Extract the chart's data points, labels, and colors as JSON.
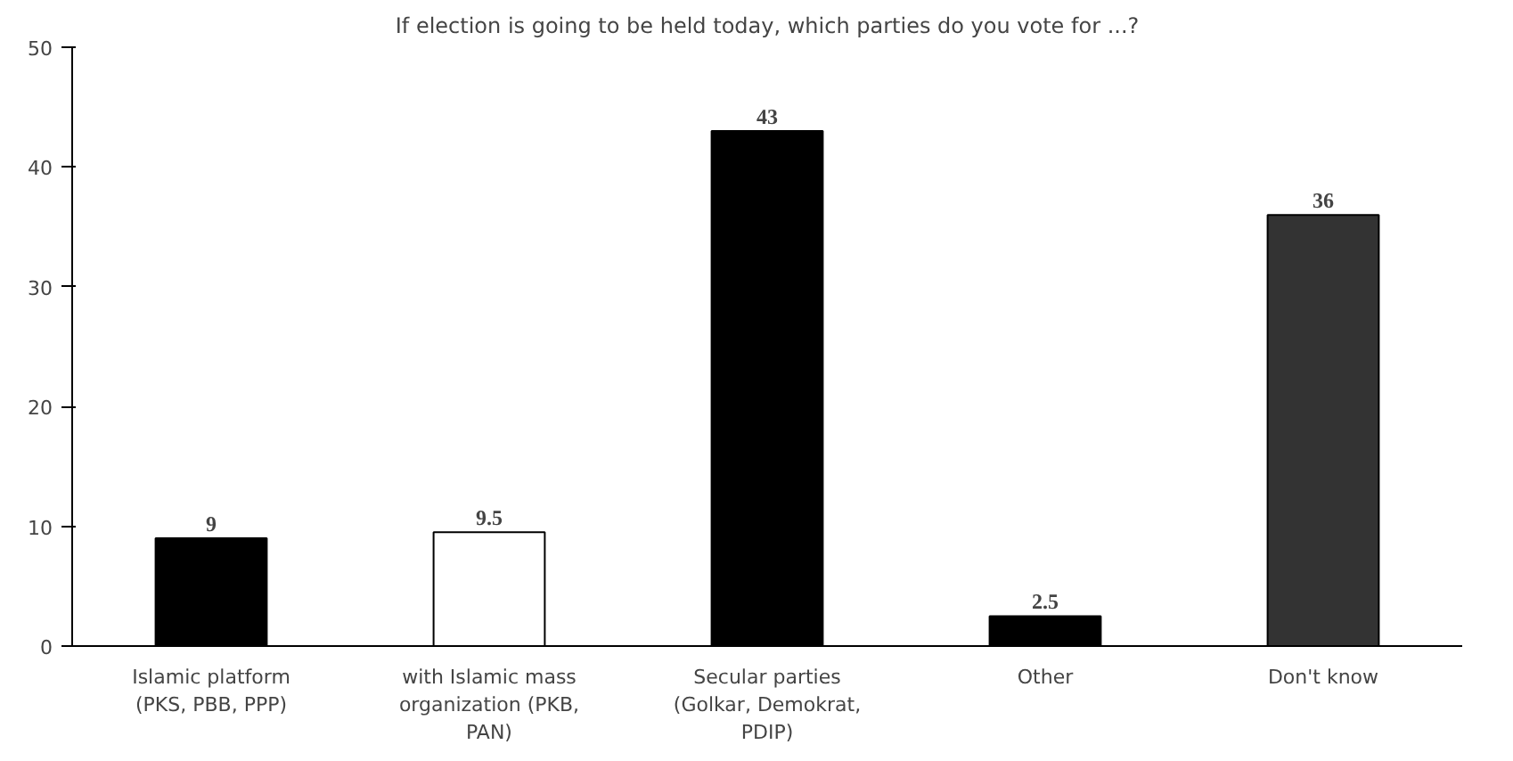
{
  "chart_data": {
    "type": "bar",
    "title": "If election is going to be held today, which parties do you vote for ...?",
    "categories": [
      "Islamic platform (PKS, PBB, PPP)",
      "with Islamic mass organization (PKB, PAN)",
      "Secular parties (Golkar, Demokrat, PDIP)",
      "Other",
      "Don't know"
    ],
    "values": [
      9,
      9.5,
      43,
      2.5,
      36
    ],
    "colors": [
      "#000000",
      "#ffffff",
      "#000000",
      "#000000",
      "#333333"
    ],
    "ylim": [
      0,
      50
    ],
    "yticks": [
      0,
      10,
      20,
      30,
      40,
      50
    ],
    "grid": false,
    "data_labels": true
  }
}
